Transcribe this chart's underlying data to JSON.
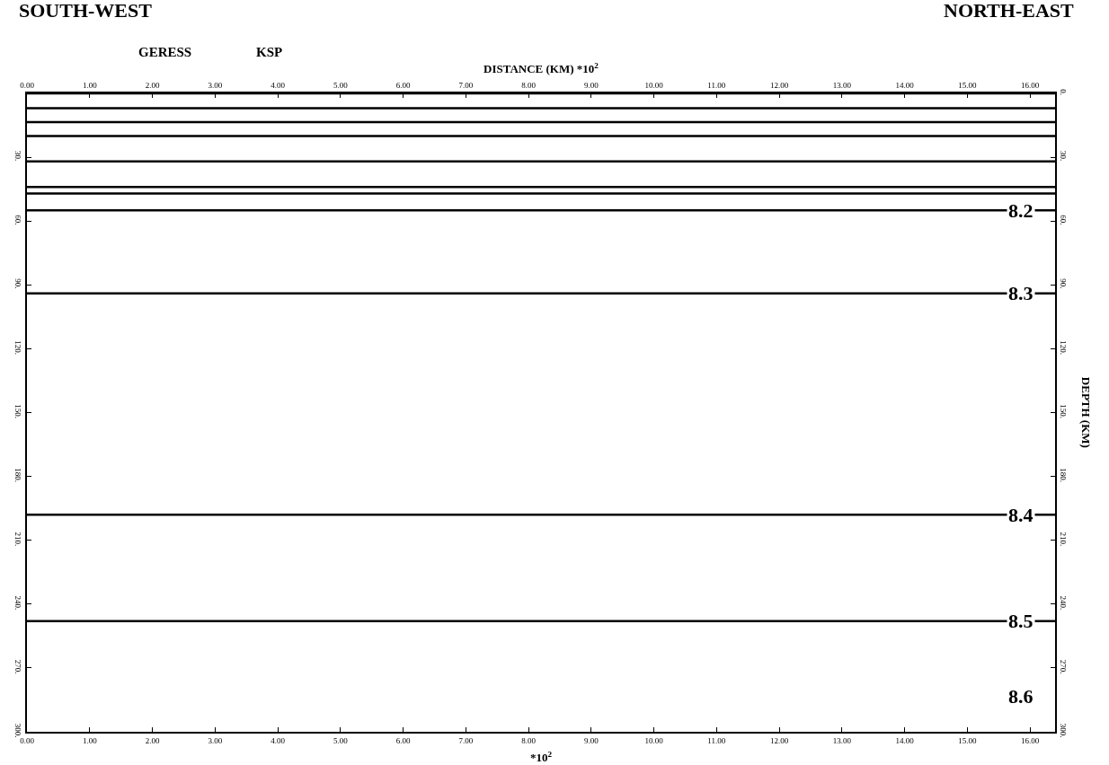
{
  "chart_data": {
    "type": "line",
    "subtitle": "SOUTH-WEST",
    "title": "NORTH-EAST",
    "x2label": "DISTANCE (KM) *10$^{2}$",
    "xlabel": "*10$^{2}$",
    "y2label": "DEPTH (KM)",
    "x": [
      0,
      16.4
    ],
    "series": [
      {
        "color": "#000000",
        "values": [
          0,
          0
        ]
      },
      {
        "color": "#000000",
        "values": [
          7,
          7
        ]
      },
      {
        "color": "#000000",
        "values": [
          13.5,
          13.5
        ]
      },
      {
        "color": "#000000",
        "values": [
          20,
          20
        ]
      },
      {
        "color": "#000000",
        "values": [
          32,
          32
        ]
      },
      {
        "color": "#000000",
        "values": [
          44,
          44
        ]
      },
      {
        "color": "#000000",
        "values": [
          47,
          47
        ]
      },
      {
        "color": "#000000",
        "values": [
          55,
          55
        ]
      },
      {
        "color": "#000000",
        "values": [
          94,
          94
        ]
      },
      {
        "color": "#000000",
        "values": [
          198,
          198
        ]
      },
      {
        "color": "#000000",
        "values": [
          248,
          248
        ]
      }
    ],
    "annotations": [
      "GERESS",
      "KSP",
      {
        "text": "8.2",
        "y": 55
      },
      {
        "text": "8.3",
        "y": 94
      },
      {
        "text": "8.4",
        "y": 198
      },
      {
        "text": "8.5",
        "y": 248
      },
      "8.6"
    ],
    "xlim": [
      0,
      16.4
    ],
    "x2lim": [
      0,
      16.4
    ],
    "xticks": [
      {
        "value": 0,
        "label": "0.00"
      },
      {
        "value": 1,
        "label": "1.00"
      },
      {
        "value": 2,
        "label": "2.00"
      },
      {
        "value": 3,
        "label": "3.00"
      },
      {
        "value": 4,
        "label": "4.00"
      },
      {
        "value": 5,
        "label": "5.00"
      },
      {
        "value": 6,
        "label": "6.00"
      },
      {
        "value": 7,
        "label": "7.00"
      },
      {
        "value": 8,
        "label": "8.00"
      },
      {
        "value": 9,
        "label": "9.00"
      },
      {
        "value": 10,
        "label": "10.00"
      },
      {
        "value": 11,
        "label": "11.00"
      },
      {
        "value": 12,
        "label": "12.00"
      },
      {
        "value": 13,
        "label": "13.00"
      },
      {
        "value": 14,
        "label": "14.00"
      },
      {
        "value": 15,
        "label": "15.00"
      },
      {
        "value": 16,
        "label": "16.00"
      }
    ],
    "x2ticks": [
      {
        "value": 0,
        "label": "0.00"
      },
      {
        "value": 1,
        "label": "1.00"
      },
      {
        "value": 2,
        "label": "2.00"
      },
      {
        "value": 3,
        "label": "3.00"
      },
      {
        "value": 4,
        "label": "4.00"
      },
      {
        "value": 5,
        "label": "5.00"
      },
      {
        "value": 6,
        "label": "6.00"
      },
      {
        "value": 7,
        "label": "7.00"
      },
      {
        "value": 8,
        "label": "8.00"
      },
      {
        "value": 9,
        "label": "9.00"
      },
      {
        "value": 10,
        "label": "10.00"
      },
      {
        "value": 11,
        "label": "11.00"
      },
      {
        "value": 12,
        "label": "12.00"
      },
      {
        "value": 13,
        "label": "13.00"
      },
      {
        "value": 14,
        "label": "14.00"
      },
      {
        "value": 15,
        "label": "15.00"
      },
      {
        "value": 16,
        "label": "16.00"
      }
    ],
    "ylim": [
      300,
      0
    ],
    "y2lim": [
      300,
      0
    ],
    "yticks": [
      {
        "value": 30,
        "label": "30."
      },
      {
        "value": 60,
        "label": "60."
      },
      {
        "value": 90,
        "label": "90."
      },
      {
        "value": 120,
        "label": "120."
      },
      {
        "value": 150,
        "label": "150."
      },
      {
        "value": 180,
        "label": "180."
      },
      {
        "value": 210,
        "label": "210."
      },
      {
        "value": 240,
        "label": "240."
      },
      {
        "value": 270,
        "label": "270."
      },
      {
        "value": 300,
        "label": "300."
      }
    ],
    "y2ticks": [
      {
        "value": 0,
        "label": "0."
      },
      {
        "value": 30,
        "label": "30."
      },
      {
        "value": 60,
        "label": "60."
      },
      {
        "value": 90,
        "label": "90."
      },
      {
        "value": 120,
        "label": "120."
      },
      {
        "value": 150,
        "label": "150."
      },
      {
        "value": 180,
        "label": "180."
      },
      {
        "value": 210,
        "label": "210."
      },
      {
        "value": 240,
        "label": "240."
      },
      {
        "value": 270,
        "label": "270."
      },
      {
        "value": 300,
        "label": "300."
      }
    ],
    "marker": "none",
    "line_style": "solid"
  }
}
